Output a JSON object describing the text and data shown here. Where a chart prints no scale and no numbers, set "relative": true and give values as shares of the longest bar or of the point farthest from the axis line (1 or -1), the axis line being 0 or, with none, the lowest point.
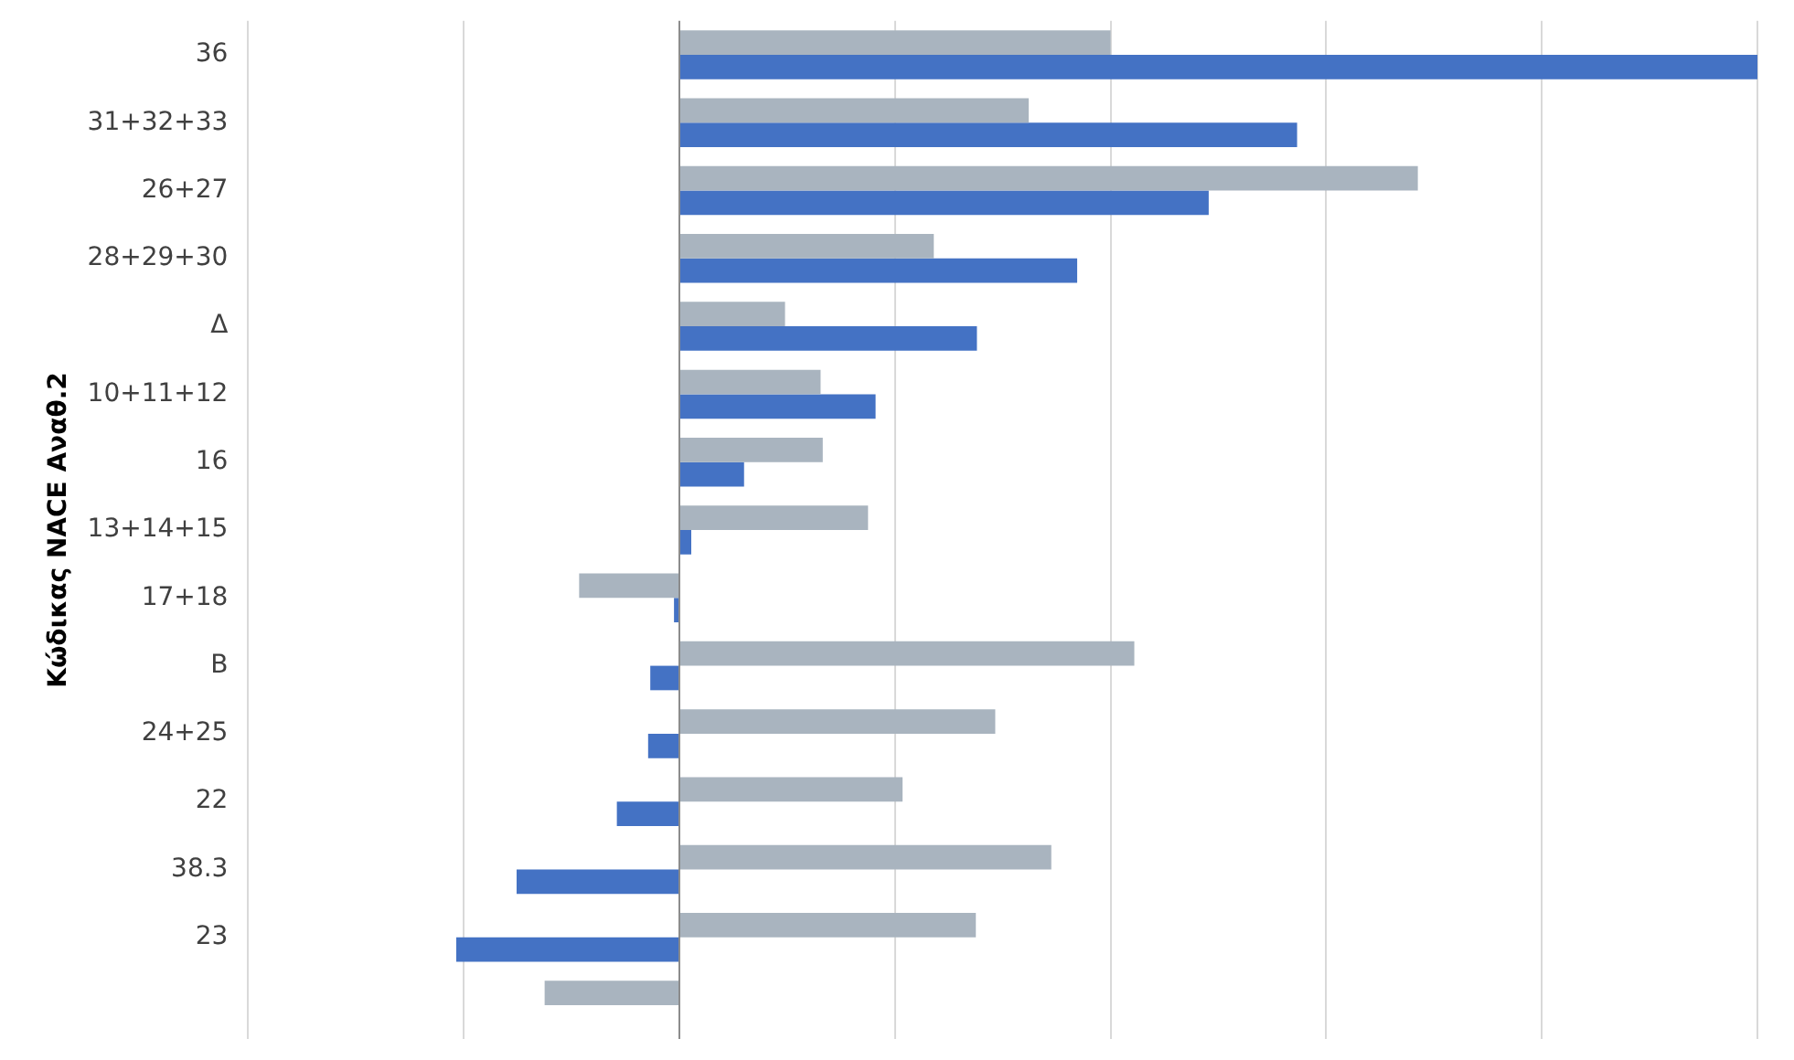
{
  "chart_data": {
    "type": "bar",
    "orientation": "horizontal",
    "relative": true,
    "ylabel": "Κώδικας NACE Αναθ.2",
    "grid": "x",
    "categories": [
      "36",
      "31+32+33",
      "26+27",
      "28+29+30",
      "Δ",
      "10+11+12",
      "16",
      "13+14+15",
      "17+18",
      "B",
      "24+25",
      "22",
      "38.3",
      "23",
      null
    ],
    "series": [
      {
        "color": "#a9b4bf",
        "values": [
          0.4,
          0.324,
          0.685,
          0.236,
          0.098,
          0.131,
          0.133,
          0.175,
          -0.093,
          0.422,
          0.293,
          0.207,
          0.345,
          0.275,
          -0.125
        ]
      },
      {
        "color": "#4472c4",
        "values": [
          1,
          0.573,
          0.491,
          0.369,
          0.276,
          0.182,
          0.06,
          0.011,
          -0.005,
          -0.027,
          -0.029,
          -0.058,
          -0.151,
          -0.207,
          null
        ]
      }
    ]
  }
}
